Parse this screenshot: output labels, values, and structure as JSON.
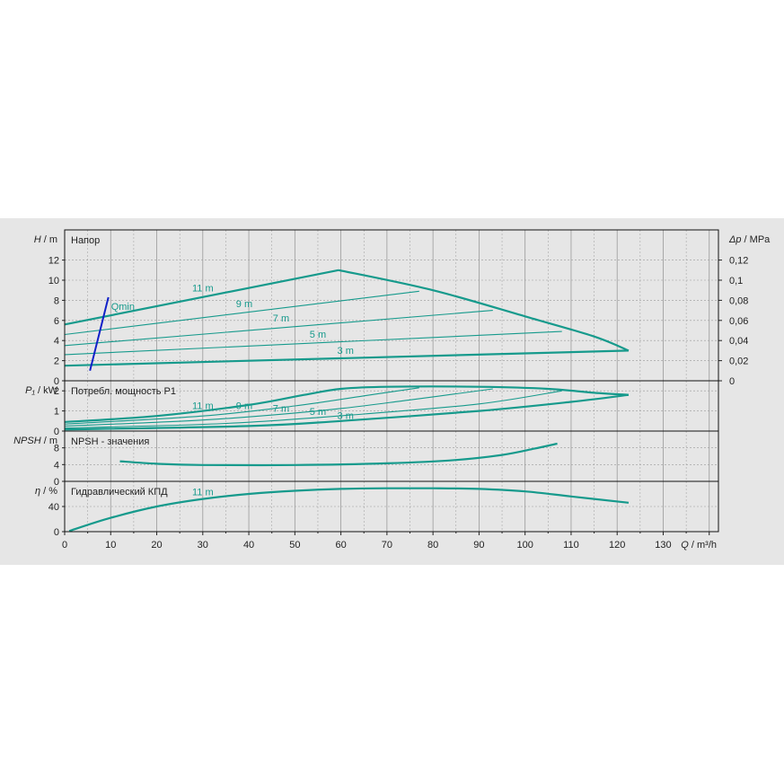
{
  "chart_data": {
    "type": "line",
    "colors": {
      "curve": "#169a8c",
      "qmin": "#1020c8",
      "grid": "#9a9a9a",
      "background": "#e6e6e6"
    },
    "x_axis": {
      "label_symbol": "Q",
      "label_unit": "m³/h",
      "range": [
        0,
        142
      ],
      "ticks": [
        0,
        10,
        20,
        30,
        40,
        50,
        60,
        70,
        80,
        90,
        100,
        110,
        120,
        130
      ]
    },
    "panels": [
      {
        "id": "head",
        "title": "Напор",
        "y_symbol": "H",
        "y_unit": "m",
        "y_range": [
          0,
          15
        ],
        "y_ticks": [
          0,
          2,
          4,
          6,
          8,
          10,
          12
        ],
        "right_axis": {
          "symbol": "Δp",
          "unit": "MPa",
          "range": [
            0,
            0.15
          ],
          "ticks": [
            "0",
            "0,02",
            "0,04",
            "0,06",
            "0,08",
            "0,1",
            "0,12"
          ]
        },
        "series": [
          {
            "name": "11 m",
            "points": [
              [
                0,
                5.6
              ],
              [
                59.5,
                11.0
              ]
            ],
            "bold": true
          },
          {
            "name": "9 m",
            "points": [
              [
                0,
                4.6
              ],
              [
                77,
                8.9
              ]
            ],
            "bold": false
          },
          {
            "name": "7 m",
            "points": [
              [
                0,
                3.5
              ],
              [
                93,
                7.0
              ]
            ],
            "bold": false
          },
          {
            "name": "5 m",
            "points": [
              [
                0,
                2.6
              ],
              [
                108,
                4.9
              ]
            ],
            "bold": false
          },
          {
            "name": "3 m",
            "points": [
              [
                0,
                1.5
              ],
              [
                122.5,
                3.0
              ]
            ],
            "bold": true
          },
          {
            "name": "",
            "points": [
              [
                59.5,
                11.0
              ],
              [
                80,
                9.0
              ],
              [
                100,
                6.4
              ],
              [
                115,
                4.4
              ],
              [
                122.5,
                3.0
              ]
            ],
            "bold": true
          }
        ],
        "labels": [
          {
            "text": "11 m",
            "x": 30,
            "y": 8.9
          },
          {
            "text": "9 m",
            "x": 39,
            "y": 7.3
          },
          {
            "text": "7 m",
            "x": 47,
            "y": 5.9
          },
          {
            "text": "5 m",
            "x": 55,
            "y": 4.3
          },
          {
            "text": "3 m",
            "x": 61,
            "y": 2.7
          }
        ],
        "qmin": {
          "text": "Qmin",
          "points": [
            [
              5.5,
              1.0
            ],
            [
              9.5,
              8.3
            ]
          ]
        }
      },
      {
        "id": "power",
        "title": "Потребл. мощность P1",
        "y_symbol": "P₁",
        "y_unit": "kW",
        "y_range": [
          0,
          2.5
        ],
        "y_ticks": [
          0,
          1,
          2
        ],
        "series": [
          {
            "name": "11 m",
            "points": [
              [
                0,
                0.45
              ],
              [
                20,
                0.75
              ],
              [
                40,
                1.3
              ],
              [
                52,
                1.8
              ],
              [
                60,
                2.1
              ],
              [
                70,
                2.2
              ],
              [
                90,
                2.2
              ],
              [
                105,
                2.1
              ],
              [
                115,
                1.9
              ],
              [
                122.5,
                1.8
              ]
            ],
            "bold": true
          },
          {
            "name": "9 m",
            "points": [
              [
                0,
                0.35
              ],
              [
                30,
                0.75
              ],
              [
                50,
                1.25
              ],
              [
                65,
                1.75
              ],
              [
                77,
                2.15
              ]
            ],
            "bold": false
          },
          {
            "name": "7 m",
            "points": [
              [
                0,
                0.25
              ],
              [
                30,
                0.55
              ],
              [
                55,
                1.0
              ],
              [
                75,
                1.55
              ],
              [
                93,
                2.1
              ]
            ],
            "bold": false
          },
          {
            "name": "5 m",
            "points": [
              [
                0,
                0.15
              ],
              [
                35,
                0.38
              ],
              [
                65,
                0.85
              ],
              [
                90,
                1.35
              ],
              [
                108,
                2.0
              ]
            ],
            "bold": false
          },
          {
            "name": "3 m",
            "points": [
              [
                0,
                0.08
              ],
              [
                40,
                0.25
              ],
              [
                60,
                0.5
              ],
              [
                90,
                1.0
              ],
              [
                110,
                1.45
              ],
              [
                122.5,
                1.8
              ]
            ],
            "bold": true
          }
        ],
        "labels": [
          {
            "text": "11 m",
            "x": 30,
            "y": 1.1
          },
          {
            "text": "9 m",
            "x": 39,
            "y": 1.1
          },
          {
            "text": "7 m",
            "x": 47,
            "y": 0.95
          },
          {
            "text": "5 m",
            "x": 55,
            "y": 0.8
          },
          {
            "text": "3 m",
            "x": 61,
            "y": 0.6
          }
        ]
      },
      {
        "id": "npsh",
        "title": "NPSH - значения",
        "y_symbol": "NPSH",
        "y_unit": "m",
        "y_range": [
          0,
          12
        ],
        "y_ticks": [
          0,
          4,
          8
        ],
        "series": [
          {
            "name": "",
            "points": [
              [
                12,
                4.8
              ],
              [
                20,
                4.2
              ],
              [
                30,
                3.9
              ],
              [
                50,
                3.9
              ],
              [
                70,
                4.3
              ],
              [
                85,
                5.1
              ],
              [
                95,
                6.3
              ],
              [
                102,
                7.8
              ],
              [
                107,
                9.0
              ]
            ],
            "bold": true
          }
        ],
        "labels": []
      },
      {
        "id": "efficiency",
        "title": "Гидравлический КПД",
        "y_symbol": "η",
        "y_unit": "%",
        "y_range": [
          0,
          80
        ],
        "y_ticks": [
          0,
          40
        ],
        "series": [
          {
            "name": "11 m",
            "points": [
              [
                1,
                1
              ],
              [
                10,
                22
              ],
              [
                20,
                40
              ],
              [
                30,
                52
              ],
              [
                40,
                60
              ],
              [
                50,
                65
              ],
              [
                60,
                68
              ],
              [
                70,
                69
              ],
              [
                80,
                69
              ],
              [
                90,
                68
              ],
              [
                100,
                64
              ],
              [
                110,
                56
              ],
              [
                122.5,
                46
              ]
            ],
            "bold": true
          }
        ],
        "labels": [
          {
            "text": "11 m",
            "x": 30,
            "y": 58
          }
        ]
      }
    ]
  }
}
